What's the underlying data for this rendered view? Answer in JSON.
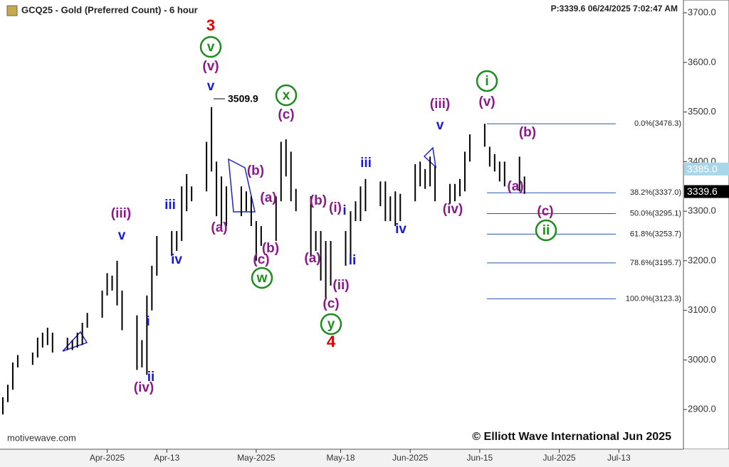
{
  "chart_data": {
    "type": "ohlc",
    "title": "GCQ25 - Gold (Preferred Count) - 6 hour",
    "info": "P:3339.6  06/24/2025 7:02:47 AM",
    "source": "motivewave.com",
    "copyright": "© Elliott Wave International Jun 2025",
    "color": "#000000",
    "x": [
      "2025-03-11",
      "2025-03-12",
      "2025-03-13",
      "2025-03-14",
      "2025-03-17",
      "2025-03-18",
      "2025-03-19",
      "2025-03-20",
      "2025-03-21",
      "2025-03-24",
      "2025-03-25",
      "2025-03-26",
      "2025-03-27",
      "2025-03-28",
      "2025-03-31",
      "2025-04-01",
      "2025-04-02",
      "2025-04-03",
      "2025-04-04",
      "2025-04-07",
      "2025-04-08",
      "2025-04-09",
      "2025-04-10",
      "2025-04-11",
      "2025-04-14",
      "2025-04-15",
      "2025-04-16",
      "2025-04-17",
      "2025-04-18",
      "2025-04-21",
      "2025-04-22",
      "2025-04-23",
      "2025-04-24",
      "2025-04-25",
      "2025-04-28",
      "2025-04-29",
      "2025-04-30",
      "2025-05-01",
      "2025-05-02",
      "2025-05-05",
      "2025-05-06",
      "2025-05-07",
      "2025-05-08",
      "2025-05-09",
      "2025-05-12",
      "2025-05-13",
      "2025-05-14",
      "2025-05-15",
      "2025-05-16",
      "2025-05-19",
      "2025-05-20",
      "2025-05-21",
      "2025-05-22",
      "2025-05-23",
      "2025-05-26",
      "2025-05-27",
      "2025-05-28",
      "2025-05-29",
      "2025-05-30",
      "2025-06-02",
      "2025-06-03",
      "2025-06-04",
      "2025-06-05",
      "2025-06-06",
      "2025-06-09",
      "2025-06-10",
      "2025-06-11",
      "2025-06-12",
      "2025-06-13",
      "2025-06-16",
      "2025-06-17",
      "2025-06-18",
      "2025-06-19",
      "2025-06-20",
      "2025-06-23",
      "2025-06-24"
    ],
    "high": [
      2925,
      2950,
      2995,
      3010,
      3015,
      3045,
      3055,
      3065,
      3055,
      3045,
      3040,
      3055,
      3075,
      3095,
      3140,
      3175,
      3170,
      3200,
      3140,
      3090,
      3040,
      3130,
      3190,
      3250,
      3260,
      3260,
      3350,
      3375,
      3350,
      3440,
      3509.9,
      3400,
      3370,
      3350,
      3350,
      3340,
      3330,
      3280,
      3270,
      3330,
      3440,
      3445,
      3420,
      3345,
      3330,
      3260,
      3260,
      3240,
      3240,
      3260,
      3300,
      3320,
      3350,
      3365,
      3360,
      3360,
      3330,
      3340,
      3335,
      3395,
      3400,
      3385,
      3410,
      3390,
      3355,
      3355,
      3365,
      3420,
      3455,
      3476.3,
      3430,
      3415,
      3400,
      3400,
      3410,
      3370
    ],
    "low": [
      2890,
      2915,
      2940,
      2985,
      2990,
      3005,
      3025,
      3030,
      3015,
      3020,
      3020,
      3025,
      3030,
      3065,
      3085,
      3130,
      3140,
      3110,
      3060,
      2980,
      2985,
      2970,
      3100,
      3170,
      3210,
      3220,
      3240,
      3300,
      3320,
      3340,
      3380,
      3290,
      3260,
      3270,
      3290,
      3300,
      3270,
      3200,
      3230,
      3240,
      3320,
      3370,
      3320,
      3300,
      3210,
      3220,
      3160,
      3125,
      3150,
      3190,
      3200,
      3280,
      3280,
      3300,
      3310,
      3280,
      3280,
      3270,
      3280,
      3320,
      3350,
      3345,
      3350,
      3320,
      3315,
      3320,
      3330,
      3340,
      3400,
      3430,
      3390,
      3380,
      3360,
      3350,
      3340,
      3335
    ],
    "xlim": [
      "2025-03-11",
      "2025-07-26"
    ],
    "xticks": [
      {
        "value": "2025-04-01",
        "label": "Apr-2025"
      },
      {
        "value": "2025-04-13",
        "label": "Apr-13"
      },
      {
        "value": "2025-05-01",
        "label": "May-2025"
      },
      {
        "value": "2025-05-18",
        "label": "May-18"
      },
      {
        "value": "2025-06-01",
        "label": "Jun-2025"
      },
      {
        "value": "2025-06-15",
        "label": "Jun-15"
      },
      {
        "value": "2025-07-01",
        "label": "Jul-2025"
      },
      {
        "value": "2025-07-13",
        "label": "Jul-13"
      }
    ],
    "ylim": [
      2820,
      3723
    ],
    "yticks": [
      {
        "value": 2900,
        "label": "2900.0"
      },
      {
        "value": 3000,
        "label": "3000.0"
      },
      {
        "value": 3100,
        "label": "3100.0"
      },
      {
        "value": 3200,
        "label": "3200.0"
      },
      {
        "value": 3300,
        "label": "3300.0"
      },
      {
        "value": 3400,
        "label": "3400.0"
      },
      {
        "value": 3500,
        "label": "3500.0"
      },
      {
        "value": 3600,
        "label": "3600.0"
      },
      {
        "value": 3700,
        "label": "3700.0"
      }
    ],
    "fib_levels": [
      {
        "value": 3476.3,
        "label": "0.0%(3476.3)"
      },
      {
        "value": 3337.0,
        "label": "38.2%(3337.0)"
      },
      {
        "value": 3295.1,
        "label": "50.0%(3295.1)"
      },
      {
        "value": 3253.7,
        "label": "61.8%(3253.7)"
      },
      {
        "value": 3195.7,
        "label": "78.6%(3195.7)"
      },
      {
        "value": 3123.3,
        "label": "100.0%(3123.3)"
      }
    ],
    "price_tags": [
      {
        "value": 3385.0,
        "label": "3385.0",
        "color": "#a9d7ea"
      },
      {
        "value": 3339.6,
        "label": "3339.6",
        "color": "#000000"
      }
    ],
    "annotations": [
      {
        "text": "3",
        "color": "#e00000",
        "circled": false
      },
      {
        "text": "v",
        "color": "#1e8c1e",
        "circled": true
      },
      {
        "text": "(v)",
        "color": "#8a1a8a",
        "circled": false
      },
      {
        "text": "v",
        "color": "#1a1ad6",
        "circled": false
      },
      {
        "text": "3509.9",
        "color": "#000000",
        "circled": false
      },
      {
        "text": "x",
        "color": "#1e8c1e",
        "circled": true
      },
      {
        "text": "(c)",
        "color": "#8a1a8a",
        "circled": false
      },
      {
        "text": "(iii)",
        "color": "#8a1a8a",
        "circled": false
      },
      {
        "text": "v",
        "color": "#1a1ad6",
        "circled": false
      },
      {
        "text": "i",
        "color": "#1e8c1e",
        "circled": true
      },
      {
        "text": "(v)",
        "color": "#8a1a8a",
        "circled": false
      },
      {
        "text": "(b)",
        "color": "#8a1a8a",
        "circled": false
      },
      {
        "text": "(a)",
        "color": "#8a1a8a",
        "circled": false
      },
      {
        "text": "(c)",
        "color": "#8a1a8a",
        "circled": false
      },
      {
        "text": "ii",
        "color": "#1e8c1e",
        "circled": true
      },
      {
        "text": "iii",
        "color": "#1a1ad6",
        "circled": false
      },
      {
        "text": "iv",
        "color": "#1a1ad6",
        "circled": false
      },
      {
        "text": "(iv)",
        "color": "#8a1a8a",
        "circled": false
      },
      {
        "text": "(b)",
        "color": "#8a1a8a",
        "circled": false
      },
      {
        "text": "(a)",
        "color": "#8a1a8a",
        "circled": false
      },
      {
        "text": "(a)",
        "color": "#8a1a8a",
        "circled": false
      },
      {
        "text": "(c)",
        "color": "#8a1a8a",
        "circled": false
      },
      {
        "text": "(b)",
        "color": "#8a1a8a",
        "circled": false
      },
      {
        "text": "w",
        "color": "#1e8c1e",
        "circled": true
      },
      {
        "text": "(b)",
        "color": "#8a1a8a",
        "circled": false
      },
      {
        "text": "(i)",
        "color": "#8a1a8a",
        "circled": false
      },
      {
        "text": "i",
        "color": "#1a1ad6",
        "circled": false
      },
      {
        "text": "(a)",
        "color": "#8a1a8a",
        "circled": false
      },
      {
        "text": "ii",
        "color": "#1a1ad6",
        "circled": false
      },
      {
        "text": "(ii)",
        "color": "#8a1a8a",
        "circled": false
      },
      {
        "text": "(c)",
        "color": "#8a1a8a",
        "circled": false
      },
      {
        "text": "y",
        "color": "#1e8c1e",
        "circled": true
      },
      {
        "text": "4",
        "color": "#e00000",
        "circled": false
      },
      {
        "text": "(iii)",
        "color": "#8a1a8a",
        "circled": false
      },
      {
        "text": "v",
        "color": "#1a1ad6",
        "circled": false
      },
      {
        "text": "iii",
        "color": "#1a1ad6",
        "circled": false
      },
      {
        "text": "iv",
        "color": "#1a1ad6",
        "circled": false
      },
      {
        "text": "i",
        "color": "#1a1ad6",
        "circled": false
      },
      {
        "text": "ii",
        "color": "#1a1ad6",
        "circled": false
      },
      {
        "text": "(iv)",
        "color": "#8a1a8a",
        "circled": false
      }
    ]
  }
}
